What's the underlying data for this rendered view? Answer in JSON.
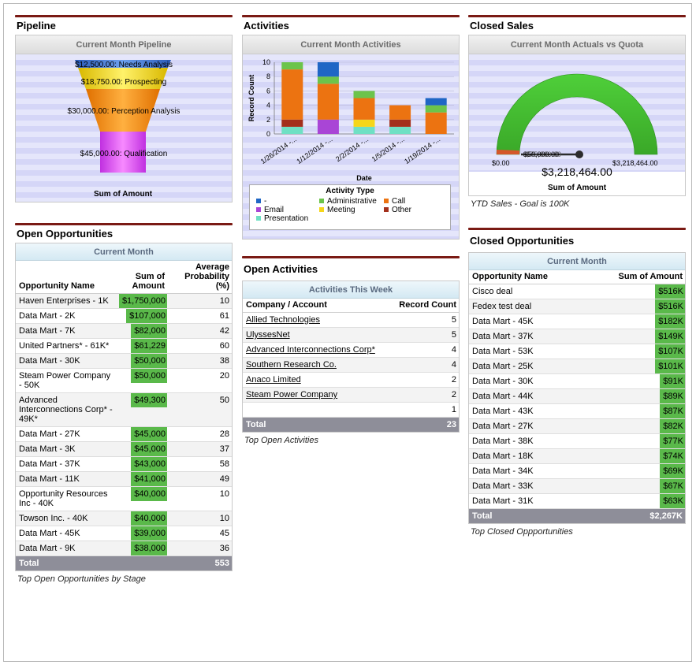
{
  "pipeline": {
    "title": "Pipeline",
    "chart_title": "Current Month Pipeline",
    "stages": [
      {
        "label": "$12,500.00: Needs Analysis"
      },
      {
        "label": "$18,750.00: Prospecting"
      },
      {
        "label": "$30,000.00: Perception Analysis"
      },
      {
        "label": "$45,000.00: Qualification"
      }
    ],
    "axis_label": "Sum of Amount",
    "chart_data": {
      "type": "funnel",
      "categories": [
        "Needs Analysis",
        "Prospecting",
        "Perception Analysis",
        "Qualification"
      ],
      "values": [
        12500,
        18750,
        30000,
        45000
      ],
      "title": "Current Month Pipeline",
      "xlabel": "Sum of Amount"
    }
  },
  "activities": {
    "title": "Activities",
    "chart_title": "Current Month Activities",
    "legend_title": "Activity Type",
    "legend": [
      "-",
      "Email",
      "Presentation",
      "Administrative",
      "Meeting",
      "Call",
      "Other"
    ],
    "colors": {
      "-": "#1f66c5",
      "Email": "#a945d6",
      "Presentation": "#6fe0c4",
      "Administrative": "#6cc44b",
      "Meeting": "#f6d61a",
      "Call": "#ec7311",
      "Other": "#a3301c"
    },
    "chart_data": {
      "type": "bar",
      "stacked": true,
      "categories": [
        "1/26/2014 -...",
        "1/12/2014 -...",
        "2/2/2014 -...",
        "1/5/2014 -...",
        "1/19/2014 -..."
      ],
      "series": [
        {
          "name": "Presentation",
          "values": [
            1,
            0,
            1,
            1,
            0
          ]
        },
        {
          "name": "Email",
          "values": [
            0,
            2,
            0,
            0,
            0
          ]
        },
        {
          "name": "Other",
          "values": [
            1,
            0,
            0,
            1,
            0
          ]
        },
        {
          "name": "Meeting",
          "values": [
            0,
            0,
            1,
            0,
            0
          ]
        },
        {
          "name": "Call",
          "values": [
            7,
            5,
            3,
            2,
            3
          ]
        },
        {
          "name": "Administrative",
          "values": [
            1,
            1,
            1,
            0,
            1
          ]
        },
        {
          "name": "-",
          "values": [
            0,
            2,
            0,
            0,
            1
          ]
        }
      ],
      "title": "Current Month Activities",
      "xlabel": "Date",
      "ylabel": "Record Count",
      "ylim": [
        0,
        10
      ],
      "yticks": [
        0,
        2,
        4,
        6,
        8,
        10
      ],
      "grid": true,
      "legend": "bottom"
    }
  },
  "closed_sales": {
    "title": "Closed Sales",
    "chart_title": "Current Month Actuals vs Quota",
    "min_label": "$0.00",
    "max_label": "$3,218,464.00",
    "needle_label": "$50,000.00",
    "needle_label_back": "$75,000.00",
    "value_label": "$3,218,464.00",
    "axis_label": "Sum of Amount",
    "footnote": "YTD Sales - Goal is 100K",
    "chart_data": {
      "type": "gauge",
      "min": 0,
      "max": 3218464,
      "value": 3218464,
      "target": 50000,
      "title": "Current Month Actuals vs Quota",
      "xlabel": "Sum of Amount"
    }
  },
  "open_opps": {
    "title": "Open Opportunities",
    "table_title": "Current Month",
    "headers": [
      "Opportunity Name",
      "Sum of Amount",
      "Average Probability (%)"
    ],
    "header_lines": {
      "amount": [
        "Sum of",
        "Amount"
      ],
      "prob": [
        "Average",
        "Probability",
        "(%)"
      ]
    },
    "rows": [
      {
        "name": "Haven Enterprises - 1K",
        "amount": "$1,750,000",
        "prob": "10"
      },
      {
        "name": "Data Mart - 2K",
        "amount": "$107,000",
        "prob": "61"
      },
      {
        "name": "Data Mart - 7K",
        "amount": "$82,000",
        "prob": "42"
      },
      {
        "name": "United Partners* - 61K*",
        "amount": "$61,229",
        "prob": "60"
      },
      {
        "name": "Data Mart - 30K",
        "amount": "$50,000",
        "prob": "38"
      },
      {
        "name": "Steam Power Company - 50K",
        "amount": "$50,000",
        "prob": "20"
      },
      {
        "name": "Advanced Interconnections Corp* - 49K*",
        "amount": "$49,300",
        "prob": "50"
      },
      {
        "name": "Data Mart - 27K",
        "amount": "$45,000",
        "prob": "28"
      },
      {
        "name": "Data Mart - 3K",
        "amount": "$45,000",
        "prob": "37"
      },
      {
        "name": "Data Mart - 37K",
        "amount": "$43,000",
        "prob": "58"
      },
      {
        "name": "Data Mart - 11K",
        "amount": "$41,000",
        "prob": "49"
      },
      {
        "name": "Opportunity Resources Inc - 40K",
        "amount": "$40,000",
        "prob": "10"
      },
      {
        "name": "Towson Inc. - 40K",
        "amount": "$40,000",
        "prob": "10"
      },
      {
        "name": "Data Mart - 45K",
        "amount": "$39,000",
        "prob": "45"
      },
      {
        "name": "Data Mart - 9K",
        "amount": "$38,000",
        "prob": "36"
      }
    ],
    "total_label": "Total",
    "total_value": "553",
    "footnote": "Top Open Opportunities by Stage"
  },
  "open_acts": {
    "title": "Open Activities",
    "table_title": "Activities This Week",
    "headers": [
      "Company / Account",
      "Record Count"
    ],
    "rows": [
      {
        "name": "Allied Technologies",
        "count": "5"
      },
      {
        "name": "UlyssesNet",
        "count": "5"
      },
      {
        "name": "Advanced Interconnections Corp*",
        "count": "4"
      },
      {
        "name": "Southern Research Co.",
        "count": "4"
      },
      {
        "name": "Anaco Limited",
        "count": "2"
      },
      {
        "name": "Steam Power Company",
        "count": "2"
      },
      {
        "name": "",
        "count": "1"
      }
    ],
    "total_label": "Total",
    "total_value": "23",
    "footnote": "Top Open Activities"
  },
  "closed_opps": {
    "title": "Closed Opportunities",
    "table_title": "Current Month",
    "headers": [
      "Opportunity Name",
      "Sum of Amount"
    ],
    "rows": [
      {
        "name": "Cisco deal",
        "amount": "$516K"
      },
      {
        "name": "Fedex test deal",
        "amount": "$516K"
      },
      {
        "name": "Data Mart - 45K",
        "amount": "$182K"
      },
      {
        "name": "Data Mart - 37K",
        "amount": "$149K"
      },
      {
        "name": "Data Mart - 53K",
        "amount": "$107K"
      },
      {
        "name": "Data Mart - 25K",
        "amount": "$101K"
      },
      {
        "name": "Data Mart - 30K",
        "amount": "$91K"
      },
      {
        "name": "Data Mart - 44K",
        "amount": "$89K"
      },
      {
        "name": "Data Mart - 43K",
        "amount": "$87K"
      },
      {
        "name": "Data Mart - 27K",
        "amount": "$82K"
      },
      {
        "name": "Data Mart - 38K",
        "amount": "$77K"
      },
      {
        "name": "Data Mart - 18K",
        "amount": "$74K"
      },
      {
        "name": "Data Mart - 34K",
        "amount": "$69K"
      },
      {
        "name": "Data Mart - 33K",
        "amount": "$67K"
      },
      {
        "name": "Data Mart - 31K",
        "amount": "$63K"
      }
    ],
    "total_label": "Total",
    "total_value": "$2,267K",
    "footnote": "Top Closed Oppportunities"
  }
}
